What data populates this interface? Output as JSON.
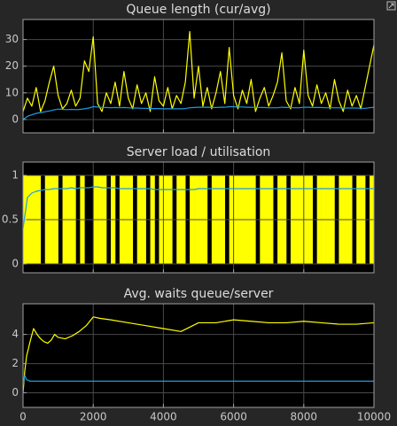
{
  "chart_data": [
    {
      "type": "line",
      "title": "Queue length (cur/avg)",
      "grid": true,
      "show_xtick_labels": false,
      "xlim": [
        0,
        10000
      ],
      "ylim": [
        -5,
        37.5
      ],
      "xticks": [
        0,
        2000,
        4000,
        6000,
        8000,
        10000
      ],
      "yticks": [
        0,
        10,
        20,
        30
      ],
      "x": [
        0,
        125,
        250,
        375,
        500,
        625,
        750,
        875,
        1000,
        1125,
        1250,
        1375,
        1500,
        1625,
        1750,
        1875,
        2000,
        2125,
        2250,
        2375,
        2500,
        2625,
        2750,
        2875,
        3000,
        3125,
        3250,
        3375,
        3500,
        3625,
        3750,
        3875,
        4000,
        4125,
        4250,
        4375,
        4500,
        4625,
        4750,
        4875,
        5000,
        5125,
        5250,
        5375,
        5500,
        5625,
        5750,
        5875,
        6000,
        6125,
        6250,
        6375,
        6500,
        6625,
        6750,
        6875,
        7000,
        7125,
        7250,
        7375,
        7500,
        7625,
        7750,
        7875,
        8000,
        8125,
        8250,
        8375,
        8500,
        8625,
        8750,
        8875,
        9000,
        9125,
        9250,
        9375,
        9500,
        9625,
        9750,
        9875,
        10000
      ],
      "series": [
        {
          "kind": "line",
          "color": "#ffff00",
          "values": [
            3,
            8,
            5,
            12,
            3,
            7,
            14,
            20,
            9,
            4,
            6,
            11,
            5,
            8,
            22,
            18,
            31,
            6,
            3,
            10,
            6,
            14,
            5,
            18,
            8,
            4,
            13,
            6,
            10,
            3,
            16,
            7,
            5,
            12,
            4,
            9,
            6,
            14,
            33,
            8,
            20,
            5,
            12,
            4,
            10,
            18,
            6,
            27,
            9,
            4,
            11,
            6,
            15,
            3,
            8,
            12,
            5,
            9,
            14,
            25,
            7,
            4,
            12,
            6,
            26,
            9,
            5,
            13,
            6,
            10,
            4,
            15,
            7,
            3,
            11,
            5,
            9,
            4,
            12,
            20,
            28
          ]
        },
        {
          "kind": "line",
          "color": "#1e9be0",
          "values": [
            0,
            1.2,
            1.8,
            2.3,
            2.6,
            2.9,
            3.2,
            3.6,
            3.9,
            3.8,
            3.7,
            3.8,
            3.7,
            3.8,
            4.0,
            4.3,
            4.8,
            4.7,
            4.5,
            4.5,
            4.4,
            4.5,
            4.4,
            4.5,
            4.4,
            4.3,
            4.3,
            4.2,
            4.2,
            4.1,
            4.1,
            4.1,
            4.0,
            4.0,
            4.0,
            4.0,
            4.0,
            4.1,
            4.4,
            4.5,
            4.6,
            4.6,
            4.6,
            4.5,
            4.5,
            4.6,
            4.6,
            4.8,
            4.8,
            4.7,
            4.7,
            4.6,
            4.6,
            4.5,
            4.5,
            4.5,
            4.4,
            4.4,
            4.4,
            4.6,
            4.5,
            4.5,
            4.4,
            4.4,
            4.6,
            4.6,
            4.5,
            4.5,
            4.5,
            4.4,
            4.4,
            4.4,
            4.4,
            4.3,
            4.3,
            4.3,
            4.3,
            4.2,
            4.2,
            4.4,
            4.6
          ]
        }
      ]
    },
    {
      "type": "line",
      "title": "Server load / utilisation",
      "grid": true,
      "show_xtick_labels": false,
      "xlim": [
        0,
        10000
      ],
      "ylim": [
        -0.1,
        1.15
      ],
      "xticks": [
        0,
        2000,
        4000,
        6000,
        8000,
        10000
      ],
      "yticks": [
        0,
        0.5,
        1
      ],
      "x": [
        0,
        125,
        250,
        375,
        500,
        625,
        750,
        875,
        1000,
        1125,
        1250,
        1375,
        1500,
        1625,
        1750,
        1875,
        2000,
        2125,
        2250,
        2375,
        2500,
        2625,
        2750,
        2875,
        3000,
        3125,
        3250,
        3375,
        3500,
        3625,
        3750,
        3875,
        4000,
        4125,
        4250,
        4375,
        4500,
        4625,
        4750,
        4875,
        5000,
        5125,
        5250,
        5375,
        5500,
        5625,
        5750,
        5875,
        6000,
        6125,
        6250,
        6375,
        6500,
        6625,
        6750,
        6875,
        7000,
        7125,
        7250,
        7375,
        7500,
        7625,
        7750,
        7875,
        8000,
        8125,
        8250,
        8375,
        8500,
        8625,
        8750,
        8875,
        9000,
        9125,
        9250,
        9375,
        9500,
        9625,
        9750,
        9875,
        10000
      ],
      "series": [
        {
          "kind": "step-area",
          "color": "#ffff00",
          "values": [
            1,
            1,
            1,
            1,
            0,
            1,
            1,
            1,
            0,
            1,
            1,
            1,
            0,
            1,
            0,
            0,
            1,
            1,
            1,
            0,
            1,
            0,
            1,
            1,
            1,
            0,
            1,
            1,
            0,
            1,
            0,
            1,
            1,
            1,
            0,
            1,
            1,
            0,
            1,
            1,
            1,
            1,
            0,
            1,
            1,
            1,
            0,
            1,
            1,
            1,
            1,
            1,
            1,
            0,
            1,
            1,
            1,
            0,
            1,
            1,
            0,
            1,
            1,
            1,
            1,
            1,
            0,
            1,
            1,
            1,
            1,
            0,
            1,
            1,
            1,
            0,
            1,
            1,
            0,
            1,
            1
          ]
        },
        {
          "kind": "line",
          "color": "#1e9be0",
          "values": [
            0.4,
            0.75,
            0.8,
            0.82,
            0.83,
            0.84,
            0.84,
            0.85,
            0.85,
            0.85,
            0.85,
            0.86,
            0.85,
            0.86,
            0.86,
            0.86,
            0.87,
            0.87,
            0.86,
            0.86,
            0.86,
            0.86,
            0.85,
            0.85,
            0.85,
            0.85,
            0.85,
            0.85,
            0.85,
            0.85,
            0.84,
            0.84,
            0.84,
            0.84,
            0.84,
            0.84,
            0.84,
            0.84,
            0.84,
            0.84,
            0.85,
            0.85,
            0.85,
            0.85,
            0.85,
            0.85,
            0.85,
            0.85,
            0.85,
            0.85,
            0.85,
            0.85,
            0.85,
            0.85,
            0.85,
            0.85,
            0.85,
            0.85,
            0.85,
            0.85,
            0.85,
            0.85,
            0.85,
            0.85,
            0.85,
            0.85,
            0.85,
            0.85,
            0.85,
            0.85,
            0.85,
            0.85,
            0.85,
            0.85,
            0.85,
            0.85,
            0.85,
            0.85,
            0.85,
            0.85,
            0.85
          ]
        }
      ]
    },
    {
      "type": "line",
      "title": "Avg. waits queue/server",
      "grid": true,
      "show_xtick_labels": true,
      "xlim": [
        0,
        10000
      ],
      "ylim": [
        -1,
        6.1
      ],
      "xticks": [
        0,
        2000,
        4000,
        6000,
        8000,
        10000
      ],
      "yticks": [
        0,
        2,
        4
      ],
      "x": [
        0,
        50,
        100,
        150,
        200,
        300,
        400,
        500,
        600,
        700,
        800,
        900,
        1000,
        1200,
        1400,
        1600,
        1800,
        2000,
        2200,
        2500,
        3000,
        3500,
        4000,
        4500,
        5000,
        5500,
        6000,
        6500,
        7000,
        7500,
        8000,
        8500,
        9000,
        9500,
        10000
      ],
      "series": [
        {
          "kind": "line",
          "color": "#ffff00",
          "values": [
            0,
            1.5,
            2.5,
            3.0,
            3.5,
            4.4,
            4.0,
            3.7,
            3.5,
            3.4,
            3.6,
            4.0,
            3.8,
            3.7,
            3.9,
            4.2,
            4.6,
            5.2,
            5.1,
            5.0,
            4.8,
            4.6,
            4.4,
            4.2,
            4.8,
            4.8,
            5.0,
            4.9,
            4.8,
            4.8,
            4.9,
            4.8,
            4.7,
            4.7,
            4.8
          ]
        },
        {
          "kind": "line",
          "color": "#1e9be0",
          "values": [
            0.5,
            1.2,
            0.9,
            0.85,
            0.8,
            0.8,
            0.8,
            0.8,
            0.8,
            0.8,
            0.8,
            0.8,
            0.8,
            0.8,
            0.8,
            0.8,
            0.8,
            0.8,
            0.8,
            0.8,
            0.8,
            0.8,
            0.8,
            0.8,
            0.8,
            0.8,
            0.8,
            0.8,
            0.8,
            0.8,
            0.8,
            0.8,
            0.8,
            0.8,
            0.8
          ]
        }
      ]
    }
  ]
}
